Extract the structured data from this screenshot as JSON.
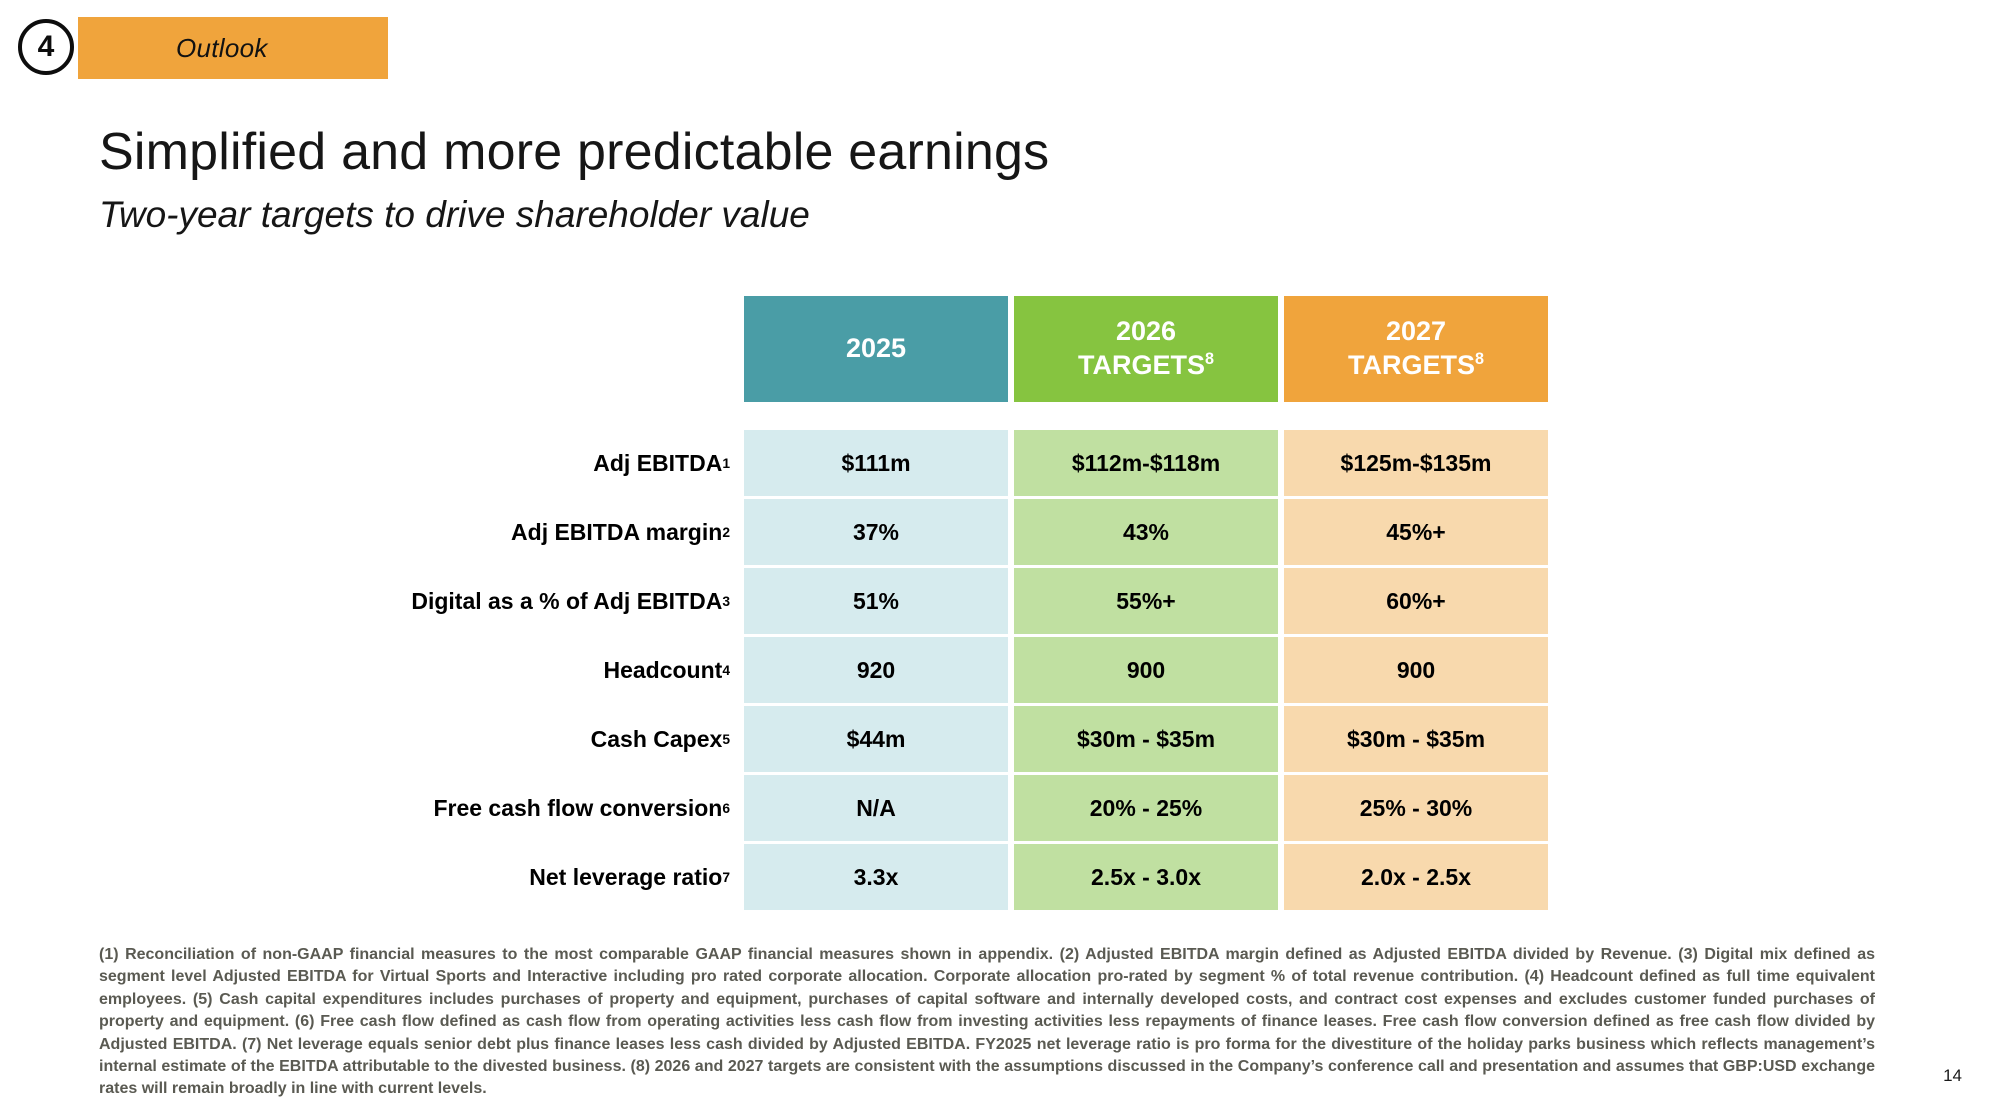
{
  "slide": {
    "section_number": "4",
    "section_label": "Outlook",
    "title": "Simplified and more predictable earnings",
    "subtitle": "Two-year targets to drive shareholder value",
    "page_number": "14"
  },
  "table": {
    "columns": [
      {
        "line1": "2025",
        "line2": "",
        "sup": ""
      },
      {
        "line1": "2026",
        "line2": "TARGETS",
        "sup": "8"
      },
      {
        "line1": "2027",
        "line2": "TARGETS",
        "sup": "8"
      }
    ],
    "rows": [
      {
        "label": "Adj EBITDA",
        "sup": "1",
        "values": [
          "$111m",
          "$112m-$118m",
          "$125m-$135m"
        ]
      },
      {
        "label": "Adj EBITDA margin",
        "sup": "2",
        "values": [
          "37%",
          "43%",
          "45%+"
        ]
      },
      {
        "label": "Digital as a % of Adj EBITDA",
        "sup": "3",
        "values": [
          "51%",
          "55%+",
          "60%+"
        ]
      },
      {
        "label": "Headcount",
        "sup": "4",
        "values": [
          "920",
          "900",
          "900"
        ]
      },
      {
        "label": "Cash Capex",
        "sup": "5",
        "values": [
          "$44m",
          "$30m - $35m",
          "$30m - $35m"
        ]
      },
      {
        "label": "Free cash flow conversion",
        "sup": "6",
        "values": [
          "N/A",
          "20% - 25%",
          "25% - 30%"
        ]
      },
      {
        "label": "Net leverage ratio",
        "sup": "7",
        "values": [
          "3.3x",
          "2.5x - 3.0x",
          "2.0x - 2.5x"
        ]
      }
    ]
  },
  "footnotes": "(1) Reconciliation of non-GAAP financial measures to the most comparable GAAP financial measures shown in appendix. (2) Adjusted EBITDA margin defined as Adjusted EBITDA divided by Revenue. (3) Digital mix defined as segment level Adjusted EBITDA for Virtual Sports and Interactive including pro rated corporate allocation. Corporate allocation pro-rated by segment % of total revenue contribution. (4) Headcount defined as full time equivalent employees. (5) Cash capital expenditures includes purchases of property and equipment, purchases of capital software and internally developed costs, and contract cost expenses and excludes customer funded purchases of property and equipment. (6) Free cash flow defined as cash flow from operating activities less cash flow from investing activities less repayments of finance leases. Free cash flow conversion defined as free cash flow divided by Adjusted EBITDA. (7) Net leverage equals senior debt plus finance leases less cash divided by Adjusted EBITDA. FY2025 net leverage ratio is pro forma for the divestiture of the holiday parks business which reflects management’s internal estimate of the EBITDA attributable to the divested business. (8) 2026 and 2027 targets are consistent with the assumptions discussed in the Company’s conference call and presentation and assumes that GBP:USD exchange rates will remain broadly in line with current levels.",
  "colors": {
    "badge_orange": "#f0a43c",
    "header_teal": "#4a9da6",
    "header_green": "#86c440",
    "header_orange": "#f0a43c",
    "cell_teal": "#d6ebee",
    "cell_green": "#c0e0a1",
    "cell_orange": "#f8d9ad"
  }
}
